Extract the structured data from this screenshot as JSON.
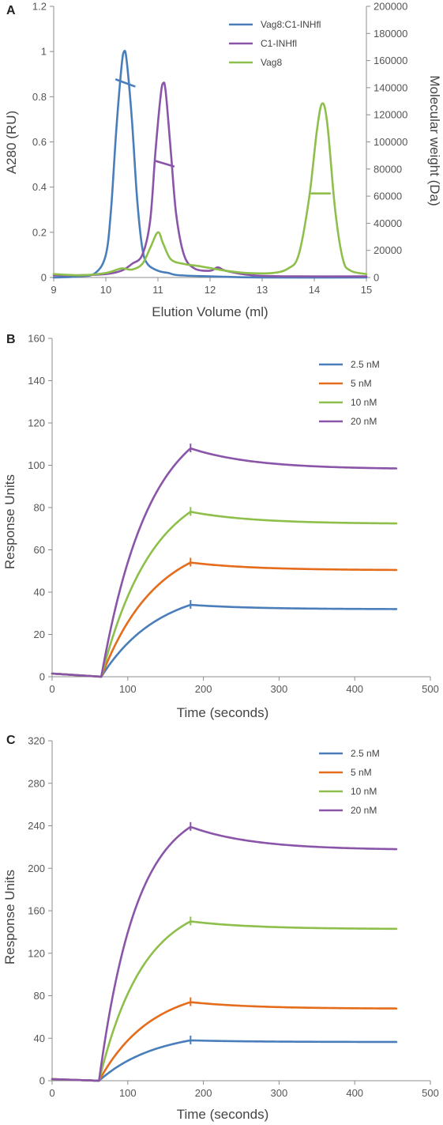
{
  "chart_data": [
    {
      "panel": "A",
      "type": "line",
      "title": "",
      "xlabel": "Elution  Volume (ml)",
      "ylabel": "A280 (RU)",
      "y2label": "Molecular weight (Da)",
      "xlim": [
        9,
        15
      ],
      "ylim": [
        0,
        1.2
      ],
      "y2lim": [
        0,
        200000
      ],
      "xticks": [
        "9",
        "10",
        "11",
        "12",
        "13",
        "14",
        "15"
      ],
      "yticks": [
        "0",
        "0.2",
        "0.4",
        "0.6",
        "0.8",
        "1",
        "1.2"
      ],
      "y2ticks": [
        "0",
        "20000",
        "40000",
        "60000",
        "80000",
        "100000",
        "120000",
        "140000",
        "160000",
        "180000",
        "200000"
      ],
      "legend_position": "top-right",
      "grid": false,
      "series": [
        {
          "name": "Vag8:C1-INHfl",
          "color": "#4a7ebb",
          "points": [
            [
              9,
              0.0
            ],
            [
              9.5,
              0.005
            ],
            [
              9.8,
              0.02
            ],
            [
              10.0,
              0.1
            ],
            [
              10.1,
              0.3
            ],
            [
              10.2,
              0.65
            ],
            [
              10.3,
              0.93
            ],
            [
              10.35,
              1.0
            ],
            [
              10.4,
              0.96
            ],
            [
              10.5,
              0.7
            ],
            [
              10.6,
              0.35
            ],
            [
              10.7,
              0.13
            ],
            [
              10.8,
              0.06
            ],
            [
              11.0,
              0.03
            ],
            [
              11.2,
              0.02
            ],
            [
              11.4,
              0.01
            ],
            [
              12.0,
              0.005
            ],
            [
              13.0,
              0.0
            ],
            [
              15,
              0.0
            ]
          ],
          "mw_segment": [
            [
              10.2,
              146000
            ],
            [
              10.55,
              141000
            ]
          ]
        },
        {
          "name": "C1-INHfl",
          "color": "#8a55a8",
          "points": [
            [
              9,
              0.01
            ],
            [
              9.5,
              0.01
            ],
            [
              10.0,
              0.015
            ],
            [
              10.3,
              0.03
            ],
            [
              10.5,
              0.06
            ],
            [
              10.7,
              0.1
            ],
            [
              10.85,
              0.25
            ],
            [
              10.95,
              0.55
            ],
            [
              11.05,
              0.8
            ],
            [
              11.1,
              0.86
            ],
            [
              11.15,
              0.82
            ],
            [
              11.25,
              0.55
            ],
            [
              11.35,
              0.28
            ],
            [
              11.5,
              0.1
            ],
            [
              11.7,
              0.04
            ],
            [
              12.0,
              0.03
            ],
            [
              12.15,
              0.045
            ],
            [
              12.3,
              0.03
            ],
            [
              12.8,
              0.01
            ],
            [
              13.5,
              0.005
            ],
            [
              15,
              0.005
            ]
          ],
          "mw_segment": [
            [
              10.95,
              86000
            ],
            [
              11.3,
              82000
            ]
          ]
        },
        {
          "name": "Vag8",
          "color": "#8dbf4a",
          "points": [
            [
              9,
              0.015
            ],
            [
              9.5,
              0.01
            ],
            [
              10.0,
              0.02
            ],
            [
              10.3,
              0.04
            ],
            [
              10.5,
              0.035
            ],
            [
              10.7,
              0.06
            ],
            [
              10.85,
              0.13
            ],
            [
              11.0,
              0.2
            ],
            [
              11.1,
              0.15
            ],
            [
              11.25,
              0.08
            ],
            [
              11.5,
              0.06
            ],
            [
              11.8,
              0.05
            ],
            [
              12.3,
              0.03
            ],
            [
              12.7,
              0.02
            ],
            [
              13.2,
              0.02
            ],
            [
              13.5,
              0.04
            ],
            [
              13.7,
              0.1
            ],
            [
              13.9,
              0.35
            ],
            [
              14.05,
              0.65
            ],
            [
              14.15,
              0.77
            ],
            [
              14.25,
              0.68
            ],
            [
              14.4,
              0.3
            ],
            [
              14.55,
              0.08
            ],
            [
              14.7,
              0.03
            ],
            [
              15,
              0.015
            ]
          ],
          "mw_segment": [
            [
              13.95,
              62000
            ],
            [
              14.3,
              62000
            ]
          ]
        }
      ]
    },
    {
      "panel": "B",
      "type": "line",
      "title": "",
      "xlabel": "Time (seconds)",
      "ylabel": "Response Units",
      "xlim": [
        0,
        500
      ],
      "ylim": [
        0,
        160
      ],
      "xticks": [
        "0",
        "100",
        "200",
        "300",
        "400",
        "500"
      ],
      "yticks": [
        "0",
        "20",
        "40",
        "60",
        "80",
        "100",
        "120",
        "140",
        "160"
      ],
      "legend_position": "top-right",
      "grid": false,
      "injection_start": 65,
      "injection_end": 183,
      "series": [
        {
          "name": "2.5 nM",
          "color": "#4a7ebb",
          "peak": 34,
          "end": 32
        },
        {
          "name": "5 nM",
          "color": "#e46c1a",
          "peak": 54,
          "end": 50.5
        },
        {
          "name": "10 nM",
          "color": "#8dbf4a",
          "peak": 78,
          "end": 72.5
        },
        {
          "name": "20 nM",
          "color": "#8a55a8",
          "peak": 108,
          "end": 98.5
        }
      ]
    },
    {
      "panel": "C",
      "type": "line",
      "title": "",
      "xlabel": "Time (seconds)",
      "ylabel": "Response Units",
      "xlim": [
        0,
        500
      ],
      "ylim": [
        0,
        320
      ],
      "xticks": [
        "0",
        "100",
        "200",
        "300",
        "400",
        "500"
      ],
      "yticks": [
        "0",
        "40",
        "80",
        "120",
        "160",
        "200",
        "240",
        "280",
        "320"
      ],
      "legend_position": "top-right",
      "grid": false,
      "injection_start": 62,
      "injection_end": 183,
      "series": [
        {
          "name": "2.5 nM",
          "color": "#4a7ebb",
          "peak": 38,
          "end": 36.5
        },
        {
          "name": "5 nM",
          "color": "#e46c1a",
          "peak": 74,
          "end": 68
        },
        {
          "name": "10 nM",
          "color": "#8dbf4a",
          "peak": 150,
          "end": 143
        },
        {
          "name": "20 nM",
          "color": "#8a55a8",
          "peak": 239,
          "end": 218
        }
      ]
    }
  ]
}
